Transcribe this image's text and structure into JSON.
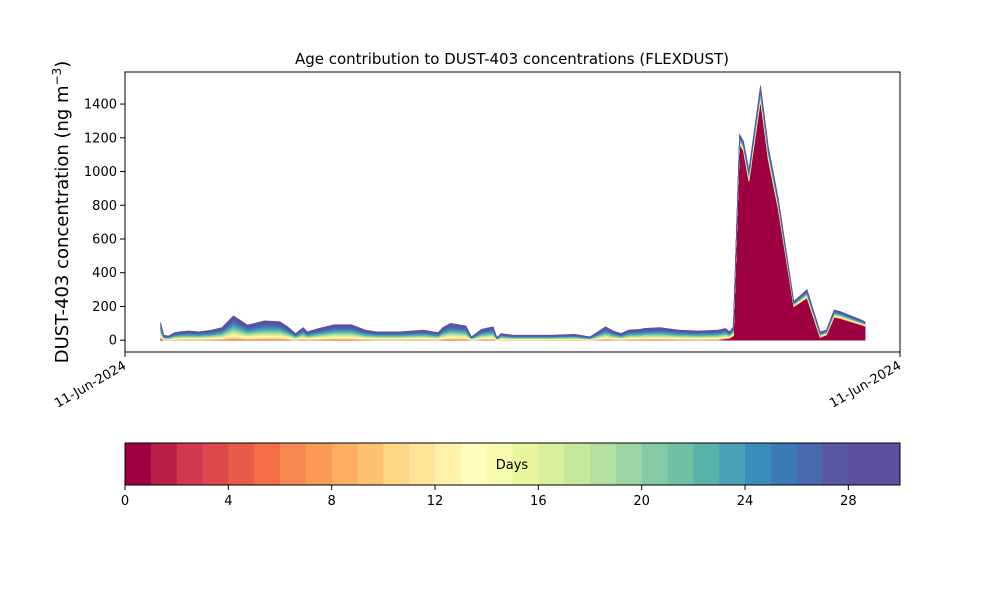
{
  "chart_data": {
    "type": "area",
    "title": "Age contribution to DUST-403 concentrations (FLEXDUST)",
    "ylabel": "DUST-403 concentration (ng m",
    "ylabel_superscript": "−3",
    "ylabel_close": ")",
    "xtick_labels": [
      "11-Jun-2024",
      "11-Jun-2024"
    ],
    "ylim": [
      -70,
      1590
    ],
    "yticks": [
      0,
      200,
      400,
      600,
      800,
      1000,
      1200,
      1400
    ],
    "xlim": [
      0,
      100
    ],
    "x": [
      4.6,
      5.0,
      5.6,
      6.4,
      7.0,
      8.2,
      9.5,
      11.2,
      12.5,
      14.0,
      15.8,
      18.0,
      20.0,
      21.0,
      22.0,
      23.0,
      23.5,
      24.3,
      25.0,
      27.0,
      29.2,
      31.0,
      32.5,
      35.5,
      38.5,
      40.4,
      41.0,
      42.0,
      44.0,
      44.7,
      46.0,
      47.5,
      48.0,
      48.5,
      50.0,
      52.0,
      55.0,
      58.0,
      60.0,
      62.0,
      63.0,
      64.0,
      65.0,
      66.5,
      67.0,
      69.0,
      71.5,
      74.0,
      76.5,
      77.5,
      78.0,
      78.5,
      79.3,
      79.8,
      80.5,
      82.0,
      83.0,
      84.3,
      86.3,
      88.0,
      89.7,
      90.5,
      91.5,
      92.3,
      95.0,
      95.5
    ],
    "totals": [
      105,
      30,
      25,
      45,
      50,
      55,
      50,
      60,
      75,
      145,
      90,
      115,
      110,
      80,
      40,
      75,
      50,
      60,
      70,
      92,
      92,
      60,
      50,
      50,
      60,
      45,
      75,
      100,
      85,
      20,
      65,
      80,
      15,
      40,
      30,
      30,
      30,
      35,
      20,
      80,
      55,
      40,
      60,
      65,
      70,
      75,
      60,
      55,
      60,
      70,
      50,
      80,
      1220,
      1180,
      1010,
      1510,
      1150,
      840,
      230,
      300,
      50,
      60,
      180,
      170,
      120,
      110
    ],
    "red_share": [
      0.05,
      0.0,
      0.0,
      0.0,
      0.0,
      0.0,
      0.0,
      0.0,
      0.0,
      0.0,
      0.0,
      0.0,
      0.0,
      0.0,
      0.0,
      0.0,
      0.0,
      0.0,
      0.0,
      0.0,
      0.0,
      0.0,
      0.0,
      0.0,
      0.0,
      0.0,
      0.0,
      0.0,
      0.0,
      0.0,
      0.0,
      0.0,
      0.0,
      0.0,
      0.0,
      0.0,
      0.0,
      0.0,
      0.0,
      0.0,
      0.0,
      0.0,
      0.0,
      0.0,
      0.0,
      0.0,
      0.0,
      0.0,
      0.0,
      0.1,
      0.2,
      0.3,
      0.95,
      0.95,
      0.93,
      0.94,
      0.93,
      0.92,
      0.86,
      0.83,
      0.3,
      0.5,
      0.75,
      0.75,
      0.75,
      0.75
    ],
    "colorbar": {
      "label": "Days",
      "range": [
        0,
        30
      ],
      "ticks": [
        0,
        4,
        8,
        12,
        16,
        20,
        24,
        28
      ],
      "colors": [
        "#9e0142",
        "#b81e48",
        "#d0384f",
        "#dc494c",
        "#e85b49",
        "#f36e46",
        "#f78851",
        "#fa9b58",
        "#fdae61",
        "#fdc373",
        "#fed684",
        "#fee597",
        "#fff2aa",
        "#fffebe",
        "#f7fcb1",
        "#e9f69d",
        "#d8ef9b",
        "#c7e89e",
        "#b4e0a2",
        "#9dd6a4",
        "#84cba5",
        "#6ec1a5",
        "#59b2aa",
        "#47a0b3",
        "#3a8ebb",
        "#3b7cb7",
        "#4a68ae",
        "#5956a4",
        "#5e4fa2",
        "#5e4fa2"
      ]
    },
    "grid": false,
    "legend": "colorbar-bottom"
  }
}
